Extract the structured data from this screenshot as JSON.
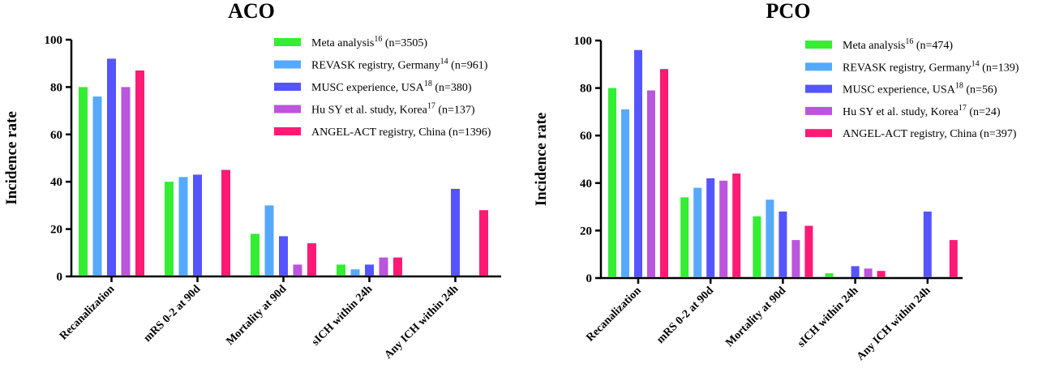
{
  "chart_data": [
    {
      "type": "bar",
      "title": "ACO",
      "ylabel": "Incidence rate",
      "xlabel": "",
      "ylim": [
        0,
        100
      ],
      "yticks": [
        "0",
        "20",
        "40",
        "60",
        "80",
        "100"
      ],
      "categories": [
        "Recanalization",
        "mRS 0-2 at 90d",
        "Mortality at 90d",
        "sICH within 24h",
        "Any ICH within 24h"
      ],
      "legend_position": "top-right",
      "series": [
        {
          "name": "Meta analysis",
          "sup": "16",
          "n": " (n=3505)",
          "color": "#33ee33",
          "values": [
            80,
            40,
            18,
            5,
            null
          ]
        },
        {
          "name": "REVASK registry, Germany",
          "sup": "14",
          "n": " (n=961)",
          "color": "#55aaff",
          "values": [
            76,
            42,
            30,
            3,
            null
          ]
        },
        {
          "name": "MUSC experience, USA",
          "sup": "18",
          "n": " (n=380)",
          "color": "#5555ff",
          "values": [
            92,
            43,
            17,
            5,
            37
          ]
        },
        {
          "name": "Hu SY et al. study, Korea",
          "sup": "17",
          "n": " (n=137)",
          "color": "#bb55dd",
          "values": [
            80,
            null,
            5,
            8,
            null
          ]
        },
        {
          "name": "ANGEL-ACT registry, China",
          "sup": "",
          "n": " (n=1396)",
          "color": "#ff1a75",
          "values": [
            87,
            45,
            14,
            8,
            28
          ]
        }
      ]
    },
    {
      "type": "bar",
      "title": "PCO",
      "ylabel": "Incidence rate",
      "xlabel": "",
      "ylim": [
        0,
        100
      ],
      "yticks": [
        "0",
        "20",
        "40",
        "60",
        "80",
        "100"
      ],
      "categories": [
        "Recanalization",
        "mRS 0-2 at 90d",
        "Mortality at 90d",
        "sICH within 24h",
        "Any ICH within 24h"
      ],
      "legend_position": "top-right",
      "series": [
        {
          "name": "Meta analysis",
          "sup": "16",
          "n": " (n=474)",
          "color": "#33ee33",
          "values": [
            80,
            34,
            26,
            2,
            null
          ]
        },
        {
          "name": "REVASK registry, Germany",
          "sup": "14",
          "n": " (n=139)",
          "color": "#55aaff",
          "values": [
            71,
            38,
            33,
            null,
            null
          ]
        },
        {
          "name": "MUSC experience, USA",
          "sup": "18",
          "n": " (n=56)",
          "color": "#5555ff",
          "values": [
            96,
            42,
            28,
            5,
            28
          ]
        },
        {
          "name": "Hu SY et al. study, Korea",
          "sup": "17",
          "n": " (n=24)",
          "color": "#bb55dd",
          "values": [
            79,
            41,
            16,
            4,
            null
          ]
        },
        {
          "name": "ANGEL-ACT registry, China",
          "sup": "",
          "n": " (n=397)",
          "color": "#ff1a75",
          "values": [
            88,
            44,
            22,
            3,
            16
          ]
        }
      ]
    }
  ]
}
